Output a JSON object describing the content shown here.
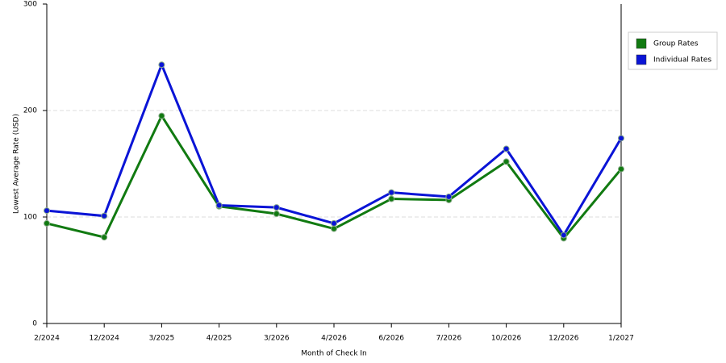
{
  "chart_data": {
    "type": "line",
    "x_label": "Month of Check In",
    "y_label": "Lowest Average Rate (USD)",
    "categories": [
      "2/2024",
      "12/2024",
      "3/2025",
      "4/2025",
      "3/2026",
      "4/2026",
      "6/2026",
      "7/2026",
      "10/2026",
      "12/2026",
      "1/2027"
    ],
    "series": [
      {
        "name": "Group Rates",
        "color": "#117a11",
        "values": [
          94,
          81,
          195,
          110,
          103,
          89,
          117,
          116,
          152,
          80,
          145
        ]
      },
      {
        "name": "Individual Rates",
        "color": "#0a14d6",
        "values": [
          106,
          101,
          243,
          111,
          109,
          94,
          123,
          119,
          164,
          83,
          174
        ]
      }
    ],
    "ylim": [
      0,
      300
    ],
    "yticks": [
      0,
      100,
      200,
      300
    ],
    "grid": true,
    "legend": "right"
  }
}
